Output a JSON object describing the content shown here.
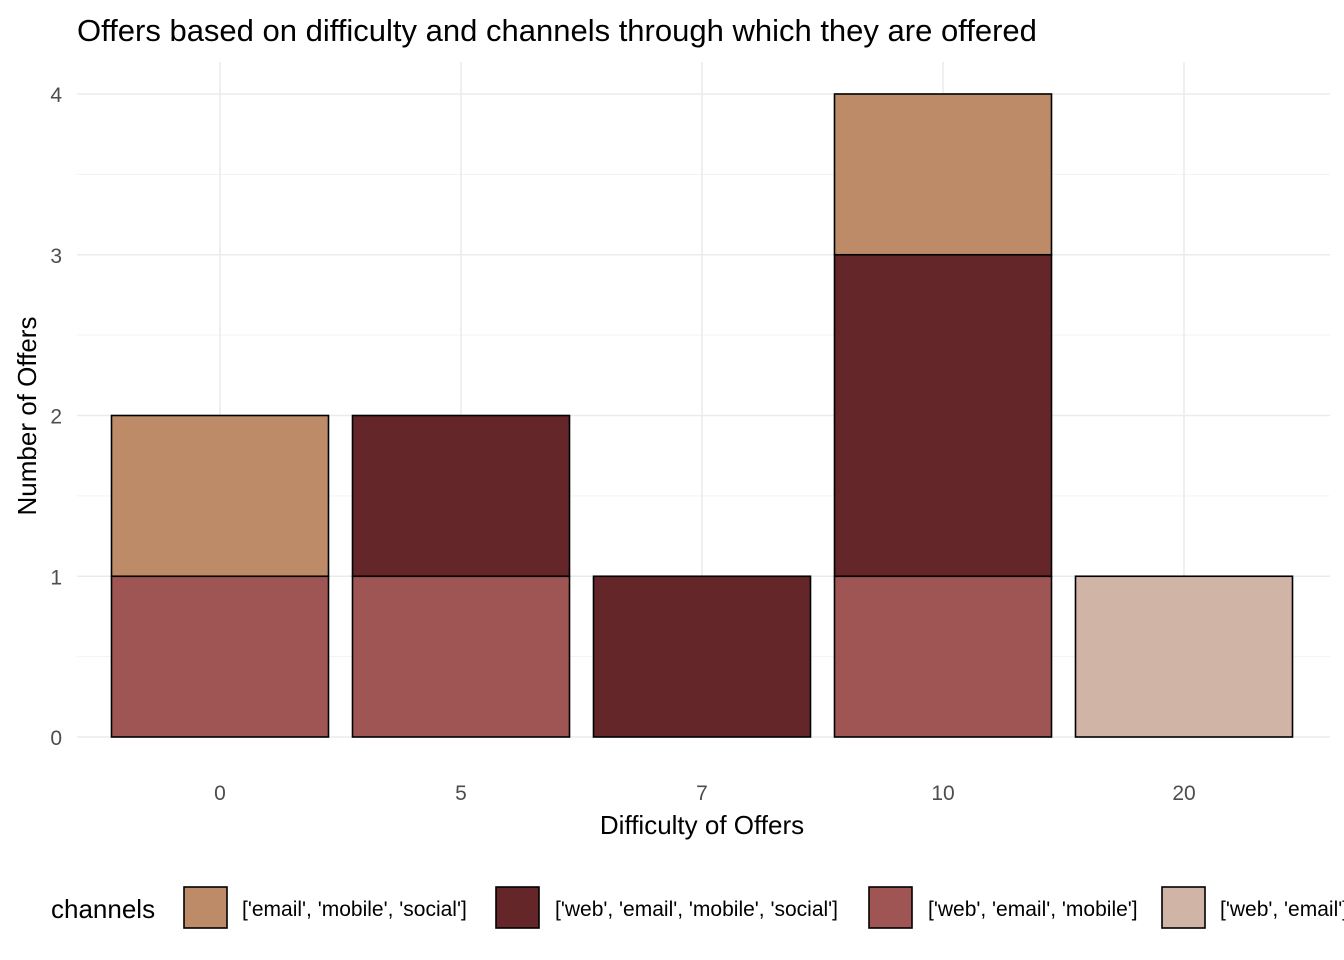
{
  "chart_data": {
    "type": "bar",
    "stacked": true,
    "title": "Offers based on difficulty and channels through which they are offered",
    "xlabel": "Difficulty of Offers",
    "ylabel": "Number of Offers",
    "categories": [
      "0",
      "5",
      "7",
      "10",
      "20"
    ],
    "ylim": [
      0,
      4
    ],
    "yticks": [
      "0",
      "1",
      "2",
      "3",
      "4"
    ],
    "grid": true,
    "legend_position": "bottom",
    "legend_title": "channels",
    "series": [
      {
        "name": "['web', 'email', 'mobile']",
        "color": "#a05555",
        "values": [
          1,
          1,
          0,
          1,
          0
        ]
      },
      {
        "name": "['web', 'email', 'mobile', 'social']",
        "color": "#642628",
        "values": [
          0,
          1,
          1,
          2,
          0
        ]
      },
      {
        "name": "['email', 'mobile', 'social']",
        "color": "#be8b68",
        "values": [
          1,
          0,
          0,
          1,
          0
        ]
      },
      {
        "name": "['web', 'email']",
        "color": "#d0b5a7",
        "values": [
          0,
          0,
          0,
          0,
          1
        ]
      }
    ],
    "legend_order": [
      2,
      1,
      0,
      3
    ]
  }
}
